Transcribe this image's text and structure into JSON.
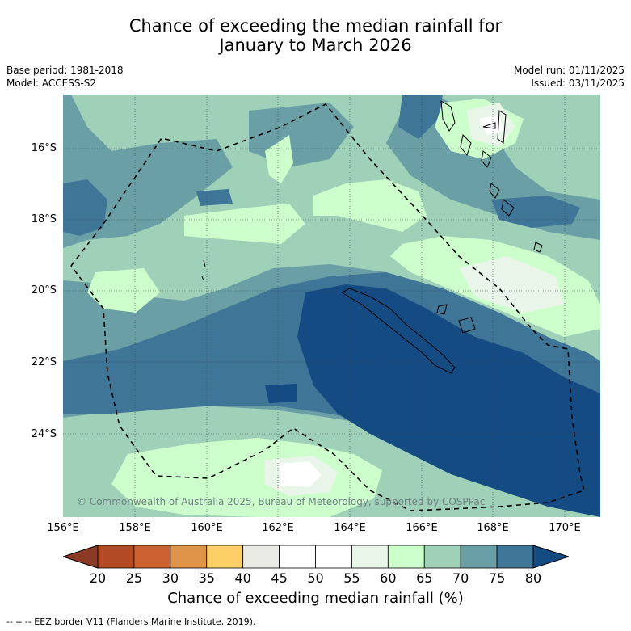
{
  "title": {
    "line1": "Chance of exceeding the median rainfall for",
    "line2": "January to March 2026"
  },
  "meta_left": {
    "base_period": "Base period: 1981-2018",
    "model": "Model: ACCESS-S2"
  },
  "meta_right": {
    "model_run": "Model run: 01/11/2025",
    "issued": "Issued: 03/11/2025"
  },
  "map": {
    "lat_labels": [
      "16°S",
      "18°S",
      "20°S",
      "22°S",
      "24°S"
    ],
    "lon_labels": [
      "156°E",
      "158°E",
      "160°E",
      "162°E",
      "164°E",
      "166°E",
      "168°E",
      "170°E"
    ],
    "copyright": "© Commonwealth of Australia 2025, Bureau of Meteorology, supported by COSPPac"
  },
  "colorbar": {
    "ticks": [
      "20",
      "25",
      "30",
      "35",
      "40",
      "45",
      "50",
      "55",
      "60",
      "65",
      "70",
      "75",
      "80"
    ],
    "colors": [
      "#8b3a24",
      "#b24a25",
      "#cc6130",
      "#e0944a",
      "#fdd067",
      "#ebebe6",
      "#ffffff",
      "#ffffff",
      "#e8f5e8",
      "#ccffcc",
      "#9fd1b9",
      "#6aa0a5",
      "#3f7596",
      "#144b82"
    ],
    "label": "Chance of exceeding median rainfall (%)"
  },
  "footer": {
    "eez_note": "--  --  -- EEZ border V11 (Flanders Marine Institute, 2019)."
  },
  "legend_colors": {
    "c60_65": "#ccffcc",
    "c65_70": "#9fd1b9",
    "c70_75": "#6aa0a5",
    "c75_80": "#3f7596",
    "c80": "#144b82",
    "c55_60": "#e8f5e8"
  }
}
